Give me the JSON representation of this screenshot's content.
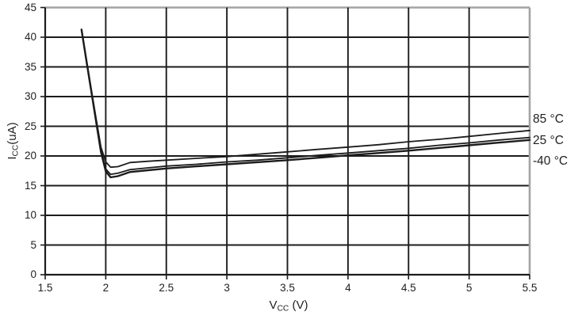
{
  "chart_data": {
    "type": "line",
    "title": "",
    "xlabel_parts": {
      "base": "V",
      "sub": "CC",
      "unit": " (V)"
    },
    "ylabel_parts": {
      "base": "I",
      "sub": "CC",
      "unit": "(uA)"
    },
    "xlim": [
      1.5,
      5.5
    ],
    "ylim": [
      0,
      45
    ],
    "x_ticks": [
      "1.5",
      "2",
      "2.5",
      "3",
      "3.5",
      "4",
      "4.5",
      "5",
      "5.5"
    ],
    "y_ticks": [
      "0",
      "5",
      "10",
      "15",
      "20",
      "25",
      "30",
      "35",
      "40",
      "45"
    ],
    "grid": true,
    "legend_position": "right",
    "colors": {
      "curve": "#1c1c1c",
      "grid": "#1c1c1c",
      "border": "#a3a3a3",
      "text": "#1f1f1f",
      "background": "#ffffff"
    },
    "series": [
      {
        "label": "85 °C",
        "stroke_width": 1.8,
        "x": [
          1.8,
          1.84,
          1.88,
          1.92,
          1.96,
          2.0,
          2.04,
          2.1,
          2.2,
          2.35,
          2.5,
          2.75,
          3.0,
          3.25,
          3.5,
          3.75,
          4.0,
          4.25,
          4.5,
          4.75,
          5.0,
          5.25,
          5.5
        ],
        "y": [
          41.3,
          36.3,
          31.3,
          26.3,
          21.5,
          19.0,
          18.1,
          18.2,
          18.9,
          19.1,
          19.3,
          19.6,
          19.9,
          20.3,
          20.7,
          21.1,
          21.5,
          21.9,
          22.4,
          22.8,
          23.3,
          23.8,
          24.3
        ]
      },
      {
        "label": "25 °C",
        "stroke_width": 1.8,
        "x": [
          1.8,
          1.84,
          1.88,
          1.92,
          1.96,
          2.0,
          2.04,
          2.1,
          2.2,
          2.35,
          2.5,
          2.75,
          3.0,
          3.25,
          3.5,
          3.75,
          4.0,
          4.25,
          4.5,
          4.75,
          5.0,
          5.25,
          5.5
        ],
        "y": [
          41.3,
          36.2,
          31.1,
          26.0,
          21.0,
          17.8,
          16.9,
          17.1,
          17.7,
          18.0,
          18.3,
          18.6,
          19.0,
          19.3,
          19.7,
          20.1,
          20.5,
          20.9,
          21.3,
          21.8,
          22.2,
          22.7,
          23.1
        ]
      },
      {
        "label": "-40 °C",
        "stroke_width": 2.4,
        "x": [
          1.8,
          1.84,
          1.88,
          1.92,
          1.96,
          2.0,
          2.04,
          2.1,
          2.2,
          2.35,
          2.5,
          2.75,
          3.0,
          3.25,
          3.5,
          3.75,
          4.0,
          4.25,
          4.5,
          4.75,
          5.0,
          5.25,
          5.5
        ],
        "y": [
          41.3,
          36.1,
          31.0,
          25.8,
          20.7,
          17.4,
          16.4,
          16.6,
          17.3,
          17.6,
          17.9,
          18.25,
          18.6,
          18.95,
          19.3,
          19.7,
          20.1,
          20.5,
          20.9,
          21.35,
          21.8,
          22.25,
          22.7
        ]
      }
    ]
  }
}
